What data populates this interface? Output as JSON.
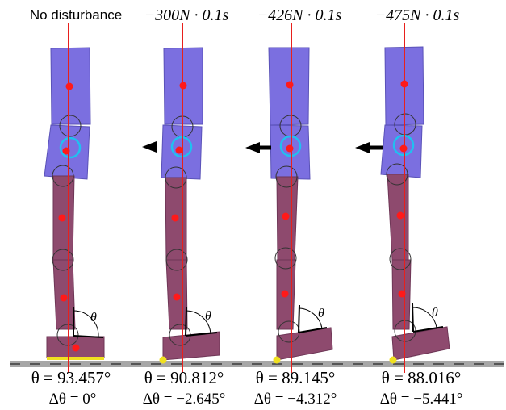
{
  "panels": [
    {
      "title": "No disturbance",
      "title_style": "plain",
      "theta_label": "θ",
      "theta_value": "θ = 93.457°",
      "delta_value": "Δθ = 0°",
      "arrow": "none"
    },
    {
      "title": "−300N · 0.1s",
      "title_style": "math",
      "theta_label": "θ",
      "theta_value": "θ = 90.812°",
      "delta_value": "Δθ = −2.645°",
      "arrow": "short"
    },
    {
      "title": "−426N · 0.1s",
      "title_style": "math",
      "theta_label": "θ",
      "theta_value": "θ = 89.145°",
      "delta_value": "Δθ = −4.312°",
      "arrow": "medium"
    },
    {
      "title": "−475N · 0.1s",
      "title_style": "math",
      "theta_label": "θ",
      "theta_value": "θ = 88.016°",
      "delta_value": "Δθ = −5.441°",
      "arrow": "long"
    }
  ],
  "colors": {
    "torso": "#7b6fe0",
    "leg": "#8e4a6e",
    "foot": "#8e4a6e",
    "reference_line": "#e8201c",
    "com_dot": "#ff1a1a",
    "com_ring": "#20c0f0",
    "contact_dot": "#f0e020",
    "ground": "#a0a0a0",
    "ground_dash": "#555555"
  }
}
